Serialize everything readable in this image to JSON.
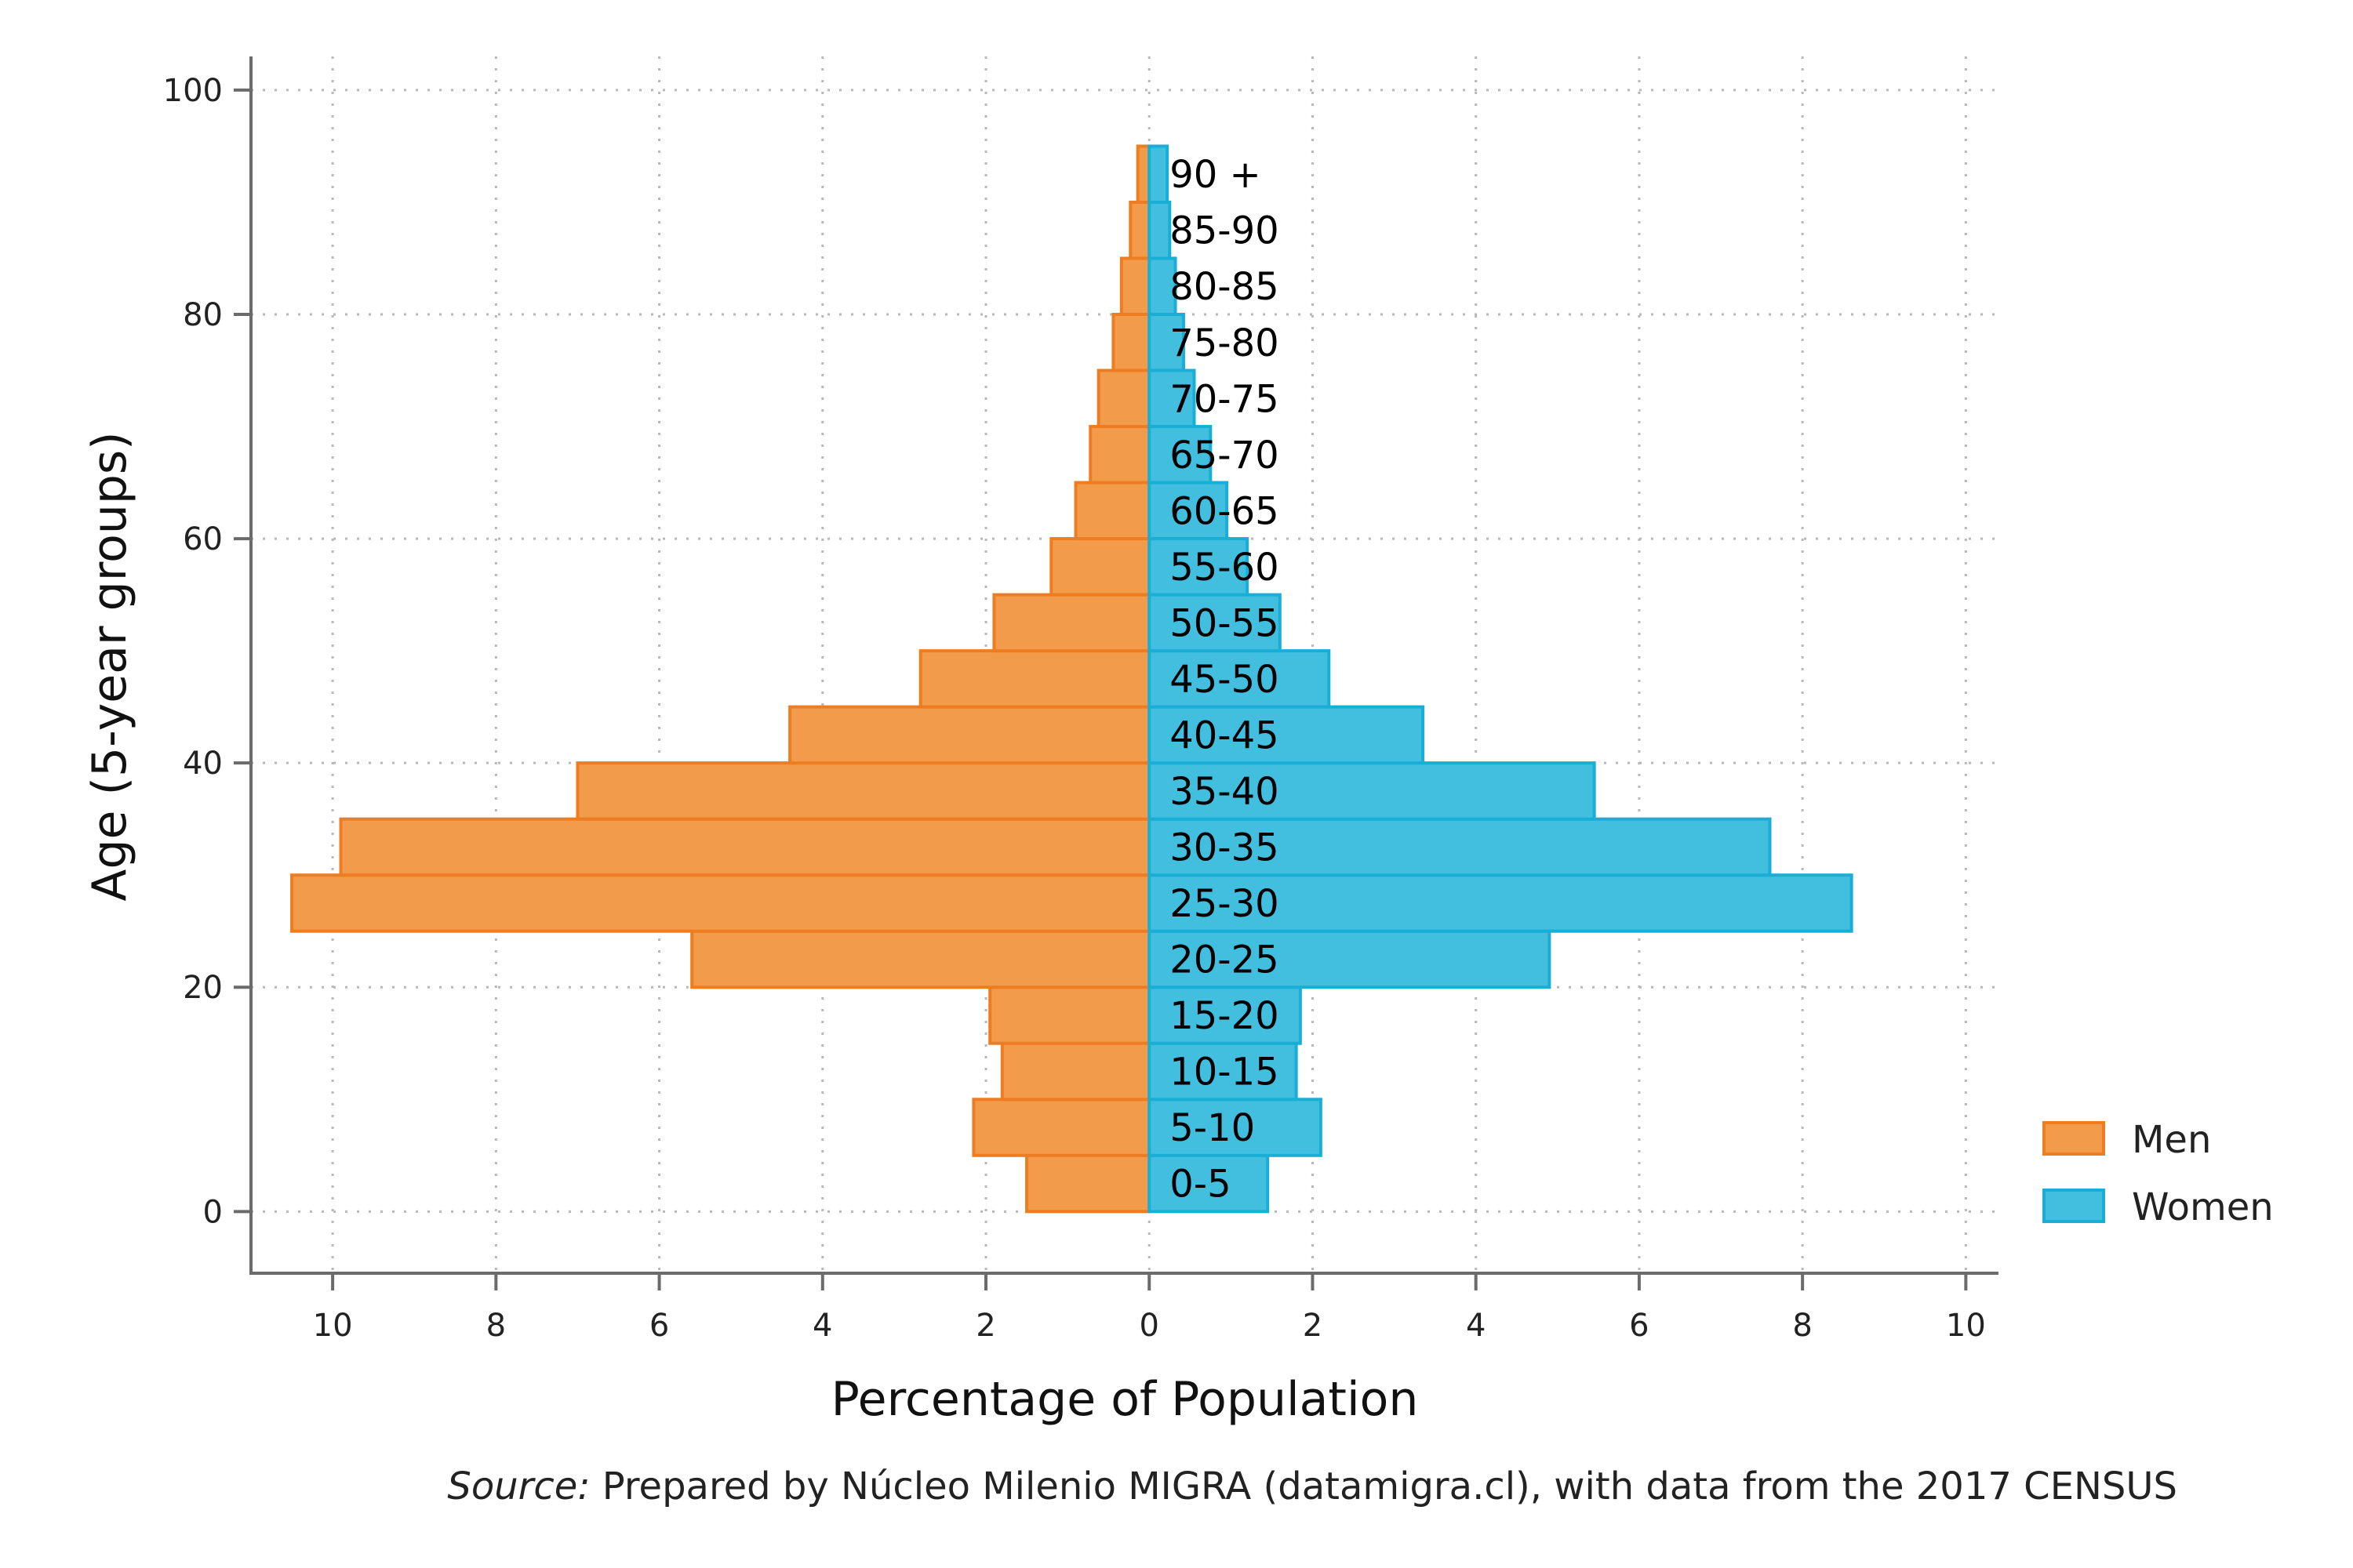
{
  "chart_data": {
    "type": "bar",
    "orientation": "horizontal-population-pyramid",
    "xlabel": "Percentage of Population",
    "ylabel": "Age (5-year groups)",
    "x_ticks": [
      "10",
      "8",
      "6",
      "4",
      "2",
      "0",
      "2",
      "4",
      "6",
      "8",
      "10"
    ],
    "y_ticks": [
      "0",
      "20",
      "40",
      "60",
      "80",
      "100"
    ],
    "xlim": [
      -11,
      10.4
    ],
    "ylim": [
      -5.5,
      103
    ],
    "grid": true,
    "legend_position": "right",
    "categories": [
      "0-5",
      "5-10",
      "10-15",
      "15-20",
      "20-25",
      "25-30",
      "30-35",
      "35-40",
      "40-45",
      "45-50",
      "50-55",
      "55-60",
      "60-65",
      "65-70",
      "70-75",
      "75-80",
      "80-85",
      "85-90",
      "90 +"
    ],
    "age_start": [
      0,
      5,
      10,
      15,
      20,
      25,
      30,
      35,
      40,
      45,
      50,
      55,
      60,
      65,
      70,
      75,
      80,
      85,
      90
    ],
    "series": [
      {
        "name": "Men",
        "color": "#f29b4a",
        "edge": "#ee7d21",
        "values": [
          1.5,
          2.15,
          1.8,
          1.95,
          5.6,
          10.5,
          9.9,
          7.0,
          4.4,
          2.8,
          1.9,
          1.2,
          0.9,
          0.72,
          0.62,
          0.44,
          0.34,
          0.23,
          0.14
        ]
      },
      {
        "name": "Women",
        "color": "#42bfdf",
        "edge": "#19aed6",
        "values": [
          1.45,
          2.1,
          1.8,
          1.85,
          4.9,
          8.6,
          7.6,
          5.45,
          3.35,
          2.2,
          1.6,
          1.2,
          0.95,
          0.75,
          0.55,
          0.42,
          0.32,
          0.25,
          0.22
        ]
      }
    ],
    "source_prefix": "Source:",
    "source_text": " Prepared by Núcleo Milenio MIGRA (datamigra.cl), with data from the 2017 CENSUS"
  }
}
